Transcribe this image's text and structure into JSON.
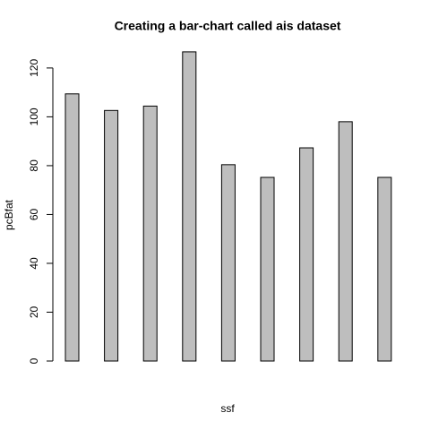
{
  "chart_data": {
    "type": "bar",
    "title": "Creating a bar-chart called ais dataset",
    "x_label": "ssf",
    "y_label": "pcBfat",
    "values": [
      109.4,
      102.6,
      104.4,
      126.6,
      80.4,
      75.2,
      87.3,
      98.0,
      75.2
    ],
    "color": "#bebebe",
    "ylim": [
      0,
      131.7
    ],
    "yticks": [
      0,
      20,
      40,
      60,
      80,
      100,
      120
    ],
    "grid": false
  }
}
